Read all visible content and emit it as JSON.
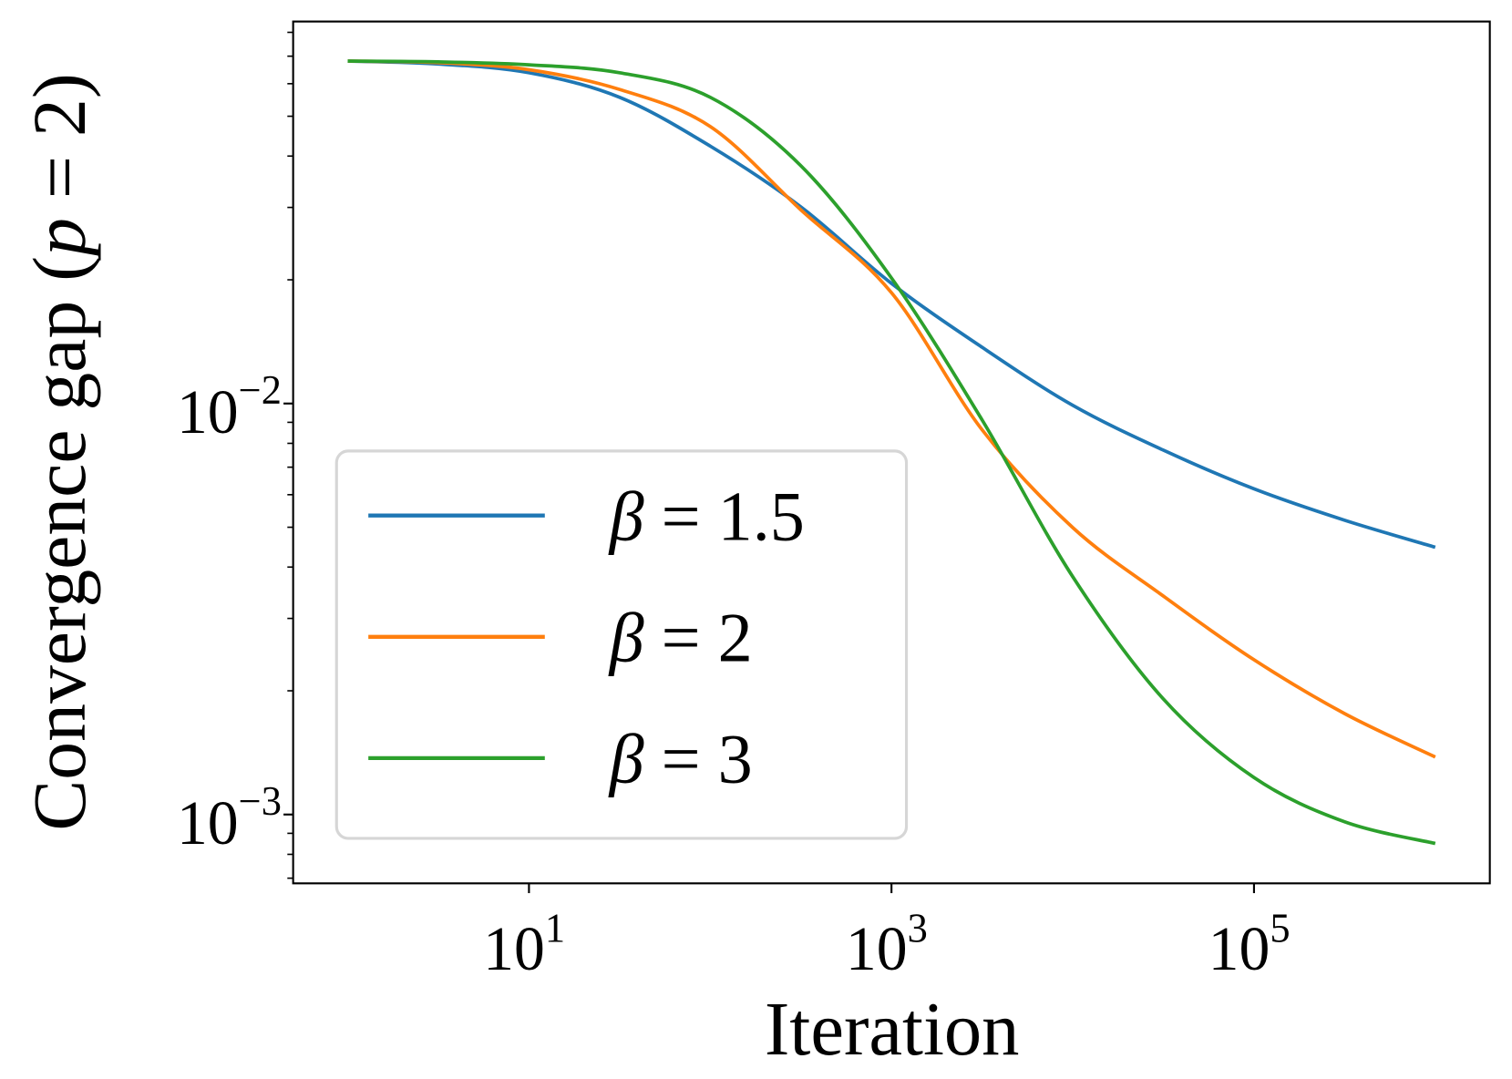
{
  "chart_data": {
    "type": "line",
    "title": "",
    "xlabel": "Iteration",
    "ylabel": "Convergence gap (p = 2)",
    "ylabel_parts": {
      "text": "Convergence gap (",
      "var": "p",
      "rest": " = 2)"
    },
    "xscale": "log",
    "yscale": "log",
    "xlim": [
      0.5,
      2000000
    ],
    "ylim": [
      0.00068,
      0.085
    ],
    "grid": false,
    "legend_placement": "lower-left",
    "x_ticks": [
      {
        "value": 10,
        "base": "10",
        "exp": "1"
      },
      {
        "value": 1000,
        "base": "10",
        "exp": "3"
      },
      {
        "value": 100000,
        "base": "10",
        "exp": "5"
      }
    ],
    "y_ticks": [
      {
        "value": 0.01,
        "base": "10",
        "exp": "−2"
      },
      {
        "value": 0.001,
        "base": "10",
        "exp": "−3"
      }
    ],
    "x": [
      1,
      3.16,
      10,
      31.6,
      100,
      316,
      1000,
      3162,
      10000,
      31623,
      100000,
      316228,
      1000000
    ],
    "series": [
      {
        "name": "β = 1.5",
        "symbol": "β",
        "label_rest": " = 1.5",
        "color": "#1f77b4",
        "values": [
          0.0681,
          0.067,
          0.0638,
          0.0556,
          0.0423,
          0.0301,
          0.0196,
          0.0137,
          0.0099,
          0.0077,
          0.0062,
          0.0052,
          0.00447
        ]
      },
      {
        "name": "β = 2",
        "symbol": "β",
        "label_rest": " = 2",
        "color": "#ff7f0e",
        "values": [
          0.0681,
          0.0675,
          0.0649,
          0.0581,
          0.0472,
          0.0296,
          0.0186,
          0.00863,
          0.00499,
          0.0034,
          0.00238,
          0.00176,
          0.00138
        ]
      },
      {
        "name": "β = 3",
        "symbol": "β",
        "label_rest": " = 3",
        "color": "#2ca02c",
        "values": [
          0.0681,
          0.0678,
          0.0667,
          0.0638,
          0.0556,
          0.0379,
          0.0202,
          0.00912,
          0.00379,
          0.00191,
          0.00123,
          0.00096,
          0.00085
        ]
      }
    ]
  }
}
